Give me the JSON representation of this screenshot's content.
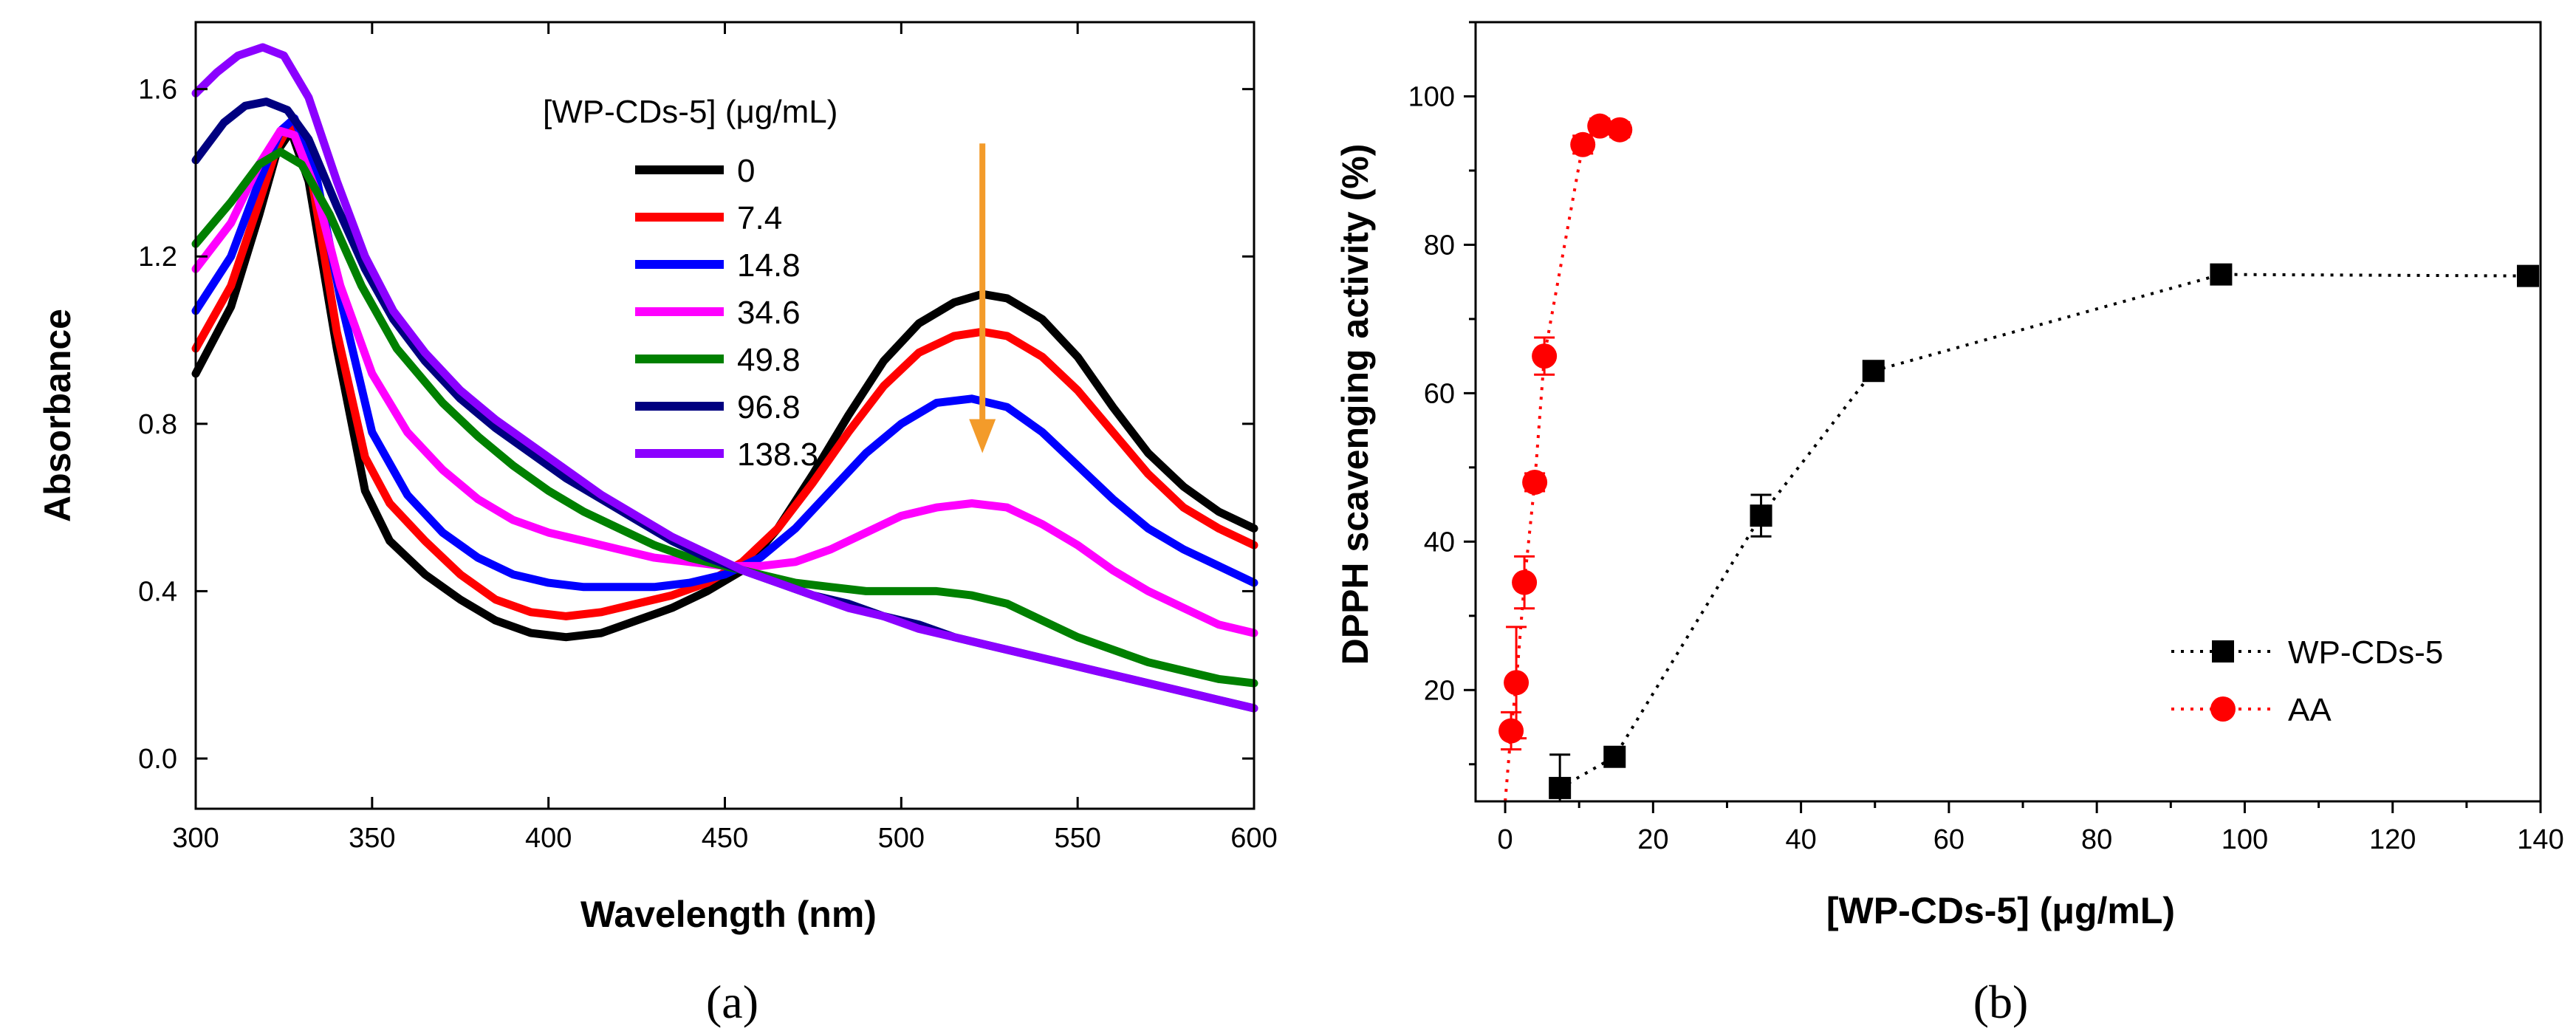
{
  "chart_data": [
    {
      "id": "a",
      "type": "line",
      "panel_label": "(a)",
      "xlabel": "Wavelength (nm)",
      "ylabel": "Absorbance",
      "xlim": [
        300,
        600
      ],
      "ylim": [
        -0.12,
        1.76
      ],
      "xticks": [
        300,
        350,
        400,
        450,
        500,
        550,
        600
      ],
      "yticks": [
        0.0,
        0.4,
        0.8,
        1.2,
        1.6
      ],
      "ytick_labels": [
        "0.0",
        "0.4",
        "0.8",
        "1.2",
        "1.6"
      ],
      "legend_title": "[WP-CDs-5] (μg/mL)",
      "annotation": "downward arrow at 523 nm from 1.47 to 0.73",
      "arrow": {
        "x": 523,
        "y_start": 1.47,
        "y_end": 0.73,
        "color": "#F39B2A"
      },
      "series": [
        {
          "name": "0",
          "color": "#000000",
          "points": [
            [
              300,
              0.92
            ],
            [
              310,
              1.08
            ],
            [
              318,
              1.3
            ],
            [
              323,
              1.45
            ],
            [
              327,
              1.5
            ],
            [
              332,
              1.38
            ],
            [
              340,
              0.98
            ],
            [
              348,
              0.64
            ],
            [
              355,
              0.52
            ],
            [
              365,
              0.44
            ],
            [
              375,
              0.38
            ],
            [
              385,
              0.33
            ],
            [
              395,
              0.3
            ],
            [
              405,
              0.29
            ],
            [
              415,
              0.3
            ],
            [
              425,
              0.33
            ],
            [
              435,
              0.36
            ],
            [
              445,
              0.4
            ],
            [
              455,
              0.45
            ],
            [
              465,
              0.55
            ],
            [
              475,
              0.68
            ],
            [
              485,
              0.82
            ],
            [
              495,
              0.95
            ],
            [
              505,
              1.04
            ],
            [
              515,
              1.09
            ],
            [
              523,
              1.11
            ],
            [
              530,
              1.1
            ],
            [
              540,
              1.05
            ],
            [
              550,
              0.96
            ],
            [
              560,
              0.84
            ],
            [
              570,
              0.73
            ],
            [
              580,
              0.65
            ],
            [
              590,
              0.59
            ],
            [
              600,
              0.55
            ]
          ]
        },
        {
          "name": "7.4",
          "color": "#FF0000",
          "points": [
            [
              300,
              0.98
            ],
            [
              310,
              1.13
            ],
            [
              318,
              1.33
            ],
            [
              323,
              1.46
            ],
            [
              327,
              1.52
            ],
            [
              333,
              1.38
            ],
            [
              340,
              1.02
            ],
            [
              348,
              0.72
            ],
            [
              355,
              0.61
            ],
            [
              365,
              0.52
            ],
            [
              375,
              0.44
            ],
            [
              385,
              0.38
            ],
            [
              395,
              0.35
            ],
            [
              405,
              0.34
            ],
            [
              415,
              0.35
            ],
            [
              425,
              0.37
            ],
            [
              435,
              0.39
            ],
            [
              445,
              0.42
            ],
            [
              455,
              0.47
            ],
            [
              465,
              0.55
            ],
            [
              475,
              0.66
            ],
            [
              485,
              0.78
            ],
            [
              495,
              0.89
            ],
            [
              505,
              0.97
            ],
            [
              515,
              1.01
            ],
            [
              523,
              1.02
            ],
            [
              530,
              1.01
            ],
            [
              540,
              0.96
            ],
            [
              550,
              0.88
            ],
            [
              560,
              0.78
            ],
            [
              570,
              0.68
            ],
            [
              580,
              0.6
            ],
            [
              590,
              0.55
            ],
            [
              600,
              0.51
            ]
          ]
        },
        {
          "name": "14.8",
          "color": "#0000FF",
          "points": [
            [
              300,
              1.07
            ],
            [
              310,
              1.2
            ],
            [
              318,
              1.38
            ],
            [
              324,
              1.5
            ],
            [
              328,
              1.53
            ],
            [
              334,
              1.4
            ],
            [
              341,
              1.1
            ],
            [
              350,
              0.78
            ],
            [
              360,
              0.63
            ],
            [
              370,
              0.54
            ],
            [
              380,
              0.48
            ],
            [
              390,
              0.44
            ],
            [
              400,
              0.42
            ],
            [
              410,
              0.41
            ],
            [
              420,
              0.41
            ],
            [
              430,
              0.41
            ],
            [
              440,
              0.42
            ],
            [
              450,
              0.44
            ],
            [
              460,
              0.48
            ],
            [
              470,
              0.55
            ],
            [
              480,
              0.64
            ],
            [
              490,
              0.73
            ],
            [
              500,
              0.8
            ],
            [
              510,
              0.85
            ],
            [
              520,
              0.86
            ],
            [
              530,
              0.84
            ],
            [
              540,
              0.78
            ],
            [
              550,
              0.7
            ],
            [
              560,
              0.62
            ],
            [
              570,
              0.55
            ],
            [
              580,
              0.5
            ],
            [
              590,
              0.46
            ],
            [
              600,
              0.42
            ]
          ]
        },
        {
          "name": "34.6",
          "color": "#FF00FF",
          "points": [
            [
              300,
              1.17
            ],
            [
              310,
              1.28
            ],
            [
              318,
              1.42
            ],
            [
              324,
              1.5
            ],
            [
              328,
              1.49
            ],
            [
              334,
              1.36
            ],
            [
              341,
              1.13
            ],
            [
              350,
              0.92
            ],
            [
              360,
              0.78
            ],
            [
              370,
              0.69
            ],
            [
              380,
              0.62
            ],
            [
              390,
              0.57
            ],
            [
              400,
              0.54
            ],
            [
              410,
              0.52
            ],
            [
              420,
              0.5
            ],
            [
              430,
              0.48
            ],
            [
              440,
              0.47
            ],
            [
              450,
              0.46
            ],
            [
              460,
              0.46
            ],
            [
              470,
              0.47
            ],
            [
              480,
              0.5
            ],
            [
              490,
              0.54
            ],
            [
              500,
              0.58
            ],
            [
              510,
              0.6
            ],
            [
              520,
              0.61
            ],
            [
              530,
              0.6
            ],
            [
              540,
              0.56
            ],
            [
              550,
              0.51
            ],
            [
              560,
              0.45
            ],
            [
              570,
              0.4
            ],
            [
              580,
              0.36
            ],
            [
              590,
              0.32
            ],
            [
              600,
              0.3
            ]
          ]
        },
        {
          "name": "49.8",
          "color": "#008000",
          "points": [
            [
              300,
              1.23
            ],
            [
              310,
              1.33
            ],
            [
              318,
              1.42
            ],
            [
              324,
              1.45
            ],
            [
              330,
              1.42
            ],
            [
              338,
              1.3
            ],
            [
              347,
              1.13
            ],
            [
              357,
              0.98
            ],
            [
              370,
              0.85
            ],
            [
              380,
              0.77
            ],
            [
              390,
              0.7
            ],
            [
              400,
              0.64
            ],
            [
              410,
              0.59
            ],
            [
              420,
              0.55
            ],
            [
              430,
              0.51
            ],
            [
              440,
              0.48
            ],
            [
              450,
              0.46
            ],
            [
              460,
              0.44
            ],
            [
              470,
              0.42
            ],
            [
              480,
              0.41
            ],
            [
              490,
              0.4
            ],
            [
              500,
              0.4
            ],
            [
              510,
              0.4
            ],
            [
              520,
              0.39
            ],
            [
              530,
              0.37
            ],
            [
              540,
              0.33
            ],
            [
              550,
              0.29
            ],
            [
              560,
              0.26
            ],
            [
              570,
              0.23
            ],
            [
              580,
              0.21
            ],
            [
              590,
              0.19
            ],
            [
              600,
              0.18
            ]
          ]
        },
        {
          "name": "96.8",
          "color": "#000080",
          "points": [
            [
              300,
              1.43
            ],
            [
              308,
              1.52
            ],
            [
              314,
              1.56
            ],
            [
              320,
              1.57
            ],
            [
              326,
              1.55
            ],
            [
              332,
              1.48
            ],
            [
              340,
              1.32
            ],
            [
              348,
              1.17
            ],
            [
              356,
              1.05
            ],
            [
              365,
              0.95
            ],
            [
              375,
              0.86
            ],
            [
              385,
              0.79
            ],
            [
              395,
              0.73
            ],
            [
              405,
              0.67
            ],
            [
              415,
              0.62
            ],
            [
              425,
              0.57
            ],
            [
              435,
              0.52
            ],
            [
              445,
              0.48
            ],
            [
              455,
              0.45
            ],
            [
              465,
              0.42
            ],
            [
              475,
              0.39
            ],
            [
              485,
              0.37
            ],
            [
              495,
              0.34
            ],
            [
              505,
              0.32
            ],
            [
              515,
              0.29
            ],
            [
              525,
              0.27
            ],
            [
              535,
              0.25
            ],
            [
              545,
              0.23
            ],
            [
              555,
              0.21
            ],
            [
              565,
              0.19
            ],
            [
              575,
              0.17
            ],
            [
              585,
              0.15
            ],
            [
              600,
              0.12
            ]
          ]
        },
        {
          "name": "138.3",
          "color": "#8B00FF",
          "points": [
            [
              300,
              1.59
            ],
            [
              306,
              1.64
            ],
            [
              312,
              1.68
            ],
            [
              319,
              1.7
            ],
            [
              325,
              1.68
            ],
            [
              332,
              1.58
            ],
            [
              340,
              1.38
            ],
            [
              348,
              1.2
            ],
            [
              356,
              1.07
            ],
            [
              365,
              0.97
            ],
            [
              375,
              0.88
            ],
            [
              385,
              0.81
            ],
            [
              395,
              0.75
            ],
            [
              405,
              0.69
            ],
            [
              415,
              0.63
            ],
            [
              425,
              0.58
            ],
            [
              435,
              0.53
            ],
            [
              445,
              0.49
            ],
            [
              455,
              0.45
            ],
            [
              465,
              0.42
            ],
            [
              475,
              0.39
            ],
            [
              485,
              0.36
            ],
            [
              495,
              0.34
            ],
            [
              505,
              0.31
            ],
            [
              515,
              0.29
            ],
            [
              525,
              0.27
            ],
            [
              535,
              0.25
            ],
            [
              545,
              0.23
            ],
            [
              555,
              0.21
            ],
            [
              565,
              0.19
            ],
            [
              575,
              0.17
            ],
            [
              585,
              0.15
            ],
            [
              600,
              0.12
            ]
          ]
        }
      ]
    },
    {
      "id": "b",
      "type": "scatter",
      "panel_label": "(b)",
      "xlabel": "[WP-CDs-5] (μg/mL)",
      "ylabel": "DPPH scavenging activity (%)",
      "xlim": [
        -4,
        140
      ],
      "ylim": [
        5,
        110
      ],
      "xticks": [
        0,
        20,
        40,
        60,
        80,
        100,
        120,
        140
      ],
      "yticks": [
        20,
        40,
        60,
        80,
        100
      ],
      "legend_position": "bottom-right",
      "series": [
        {
          "name": "WP-CDs-5",
          "color": "#000000",
          "marker": "square",
          "points": [
            [
              7.4,
              6.8,
              4.5
            ],
            [
              14.8,
              11,
              1.2
            ],
            [
              34.6,
              43.5,
              2.8
            ],
            [
              49.8,
              63,
              1.0
            ],
            [
              96.8,
              76,
              1.0
            ],
            [
              138.3,
              75.8,
              1.0
            ]
          ]
        },
        {
          "name": "AA",
          "color": "#FF0000",
          "marker": "circle",
          "points": [
            [
              0.8,
              14.5,
              2.5
            ],
            [
              1.5,
              21,
              7.5
            ],
            [
              2.6,
              34.5,
              3.5
            ],
            [
              4,
              48,
              1.2
            ],
            [
              5.3,
              65,
              2.5
            ],
            [
              10.5,
              93.5,
              1.2
            ],
            [
              12.8,
              96,
              1.0
            ],
            [
              15.5,
              95.5,
              1.0
            ]
          ]
        }
      ]
    }
  ]
}
